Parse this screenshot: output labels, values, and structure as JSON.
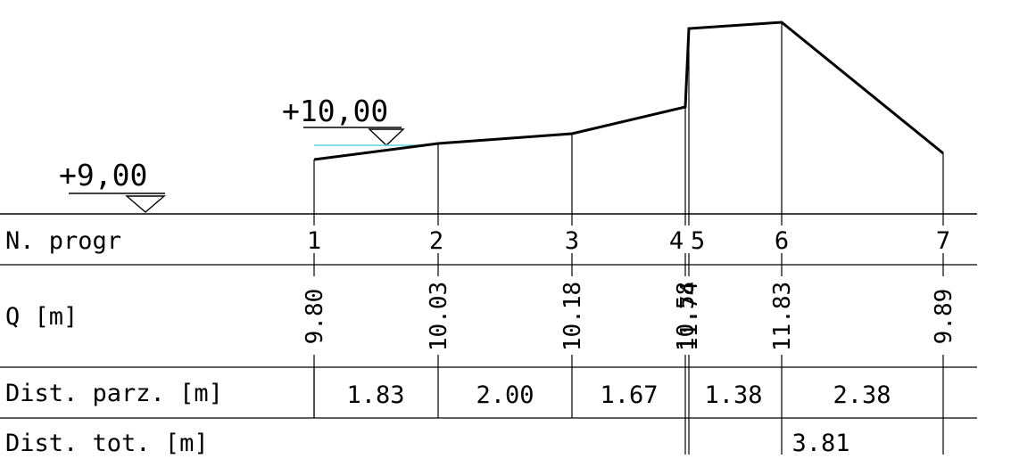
{
  "rows": {
    "n_progr": "N. progr",
    "q": "Q [m]",
    "dist_parz": "Dist. parz. [m]",
    "dist_tot": "Dist. tot. [m]"
  },
  "levels": {
    "ground": "+9,00",
    "water": "+10,00"
  },
  "colors": {
    "line": "#000000",
    "water_line": "#5fd3e0"
  },
  "sections": [
    {
      "n": "1",
      "q": "9.80"
    },
    {
      "n": "2",
      "q": "10.03"
    },
    {
      "n": "3",
      "q": "10.18"
    },
    {
      "n": "4",
      "q": "10.58"
    },
    {
      "n": "5",
      "q": "11.74"
    },
    {
      "n": "6",
      "q": "11.83"
    },
    {
      "n": "7",
      "q": "9.89"
    }
  ],
  "partial_distances": [
    "1.83",
    "2.00",
    "1.67",
    "1.38",
    "2.38"
  ],
  "total_distances": [
    "3.81"
  ]
}
